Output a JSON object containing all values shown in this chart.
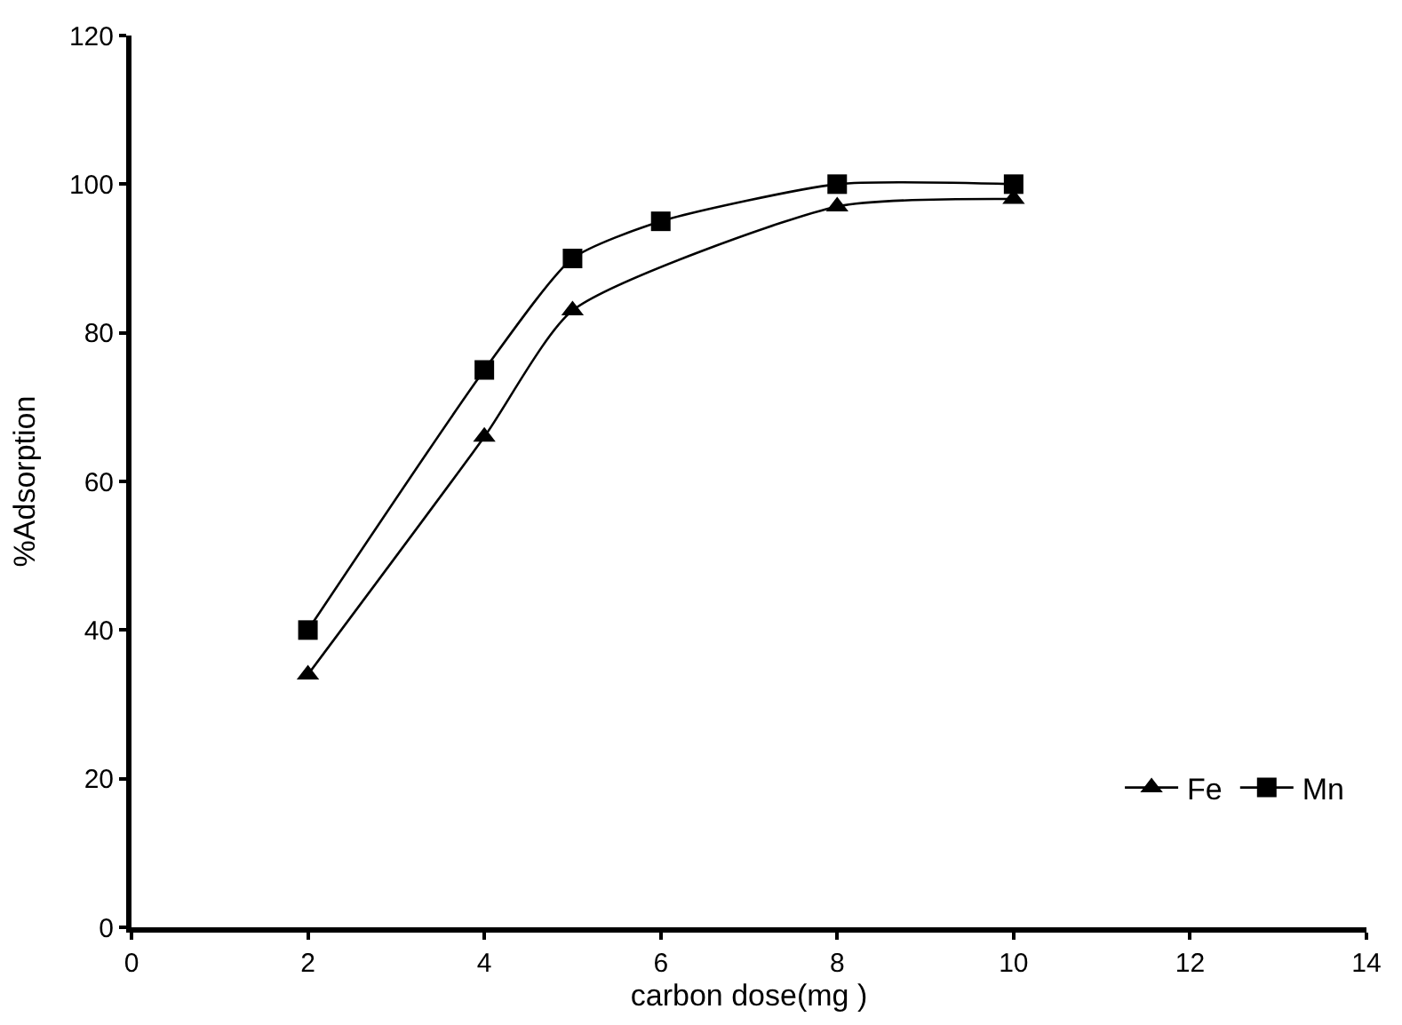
{
  "chart_data": {
    "type": "line",
    "xlabel": "carbon dose(mg )",
    "ylabel": "%Adsorption",
    "xlim": [
      0,
      14
    ],
    "xticks": [
      0,
      2,
      4,
      6,
      8,
      10,
      12,
      14
    ],
    "ylim": [
      0,
      120
    ],
    "yticks": [
      0,
      20,
      40,
      60,
      80,
      100,
      120
    ],
    "legend": "bottom right",
    "series": [
      {
        "name": "Fe",
        "color": "#000000",
        "marker": "triangle",
        "x": [
          2,
          4,
          5,
          8,
          10
        ],
        "values": [
          34,
          66,
          83,
          97,
          98
        ]
      },
      {
        "name": "Mn",
        "color": "#000000",
        "marker": "square",
        "x": [
          2,
          4,
          5,
          6,
          8,
          10
        ],
        "values": [
          40,
          75,
          90,
          95,
          100,
          100
        ]
      }
    ]
  }
}
